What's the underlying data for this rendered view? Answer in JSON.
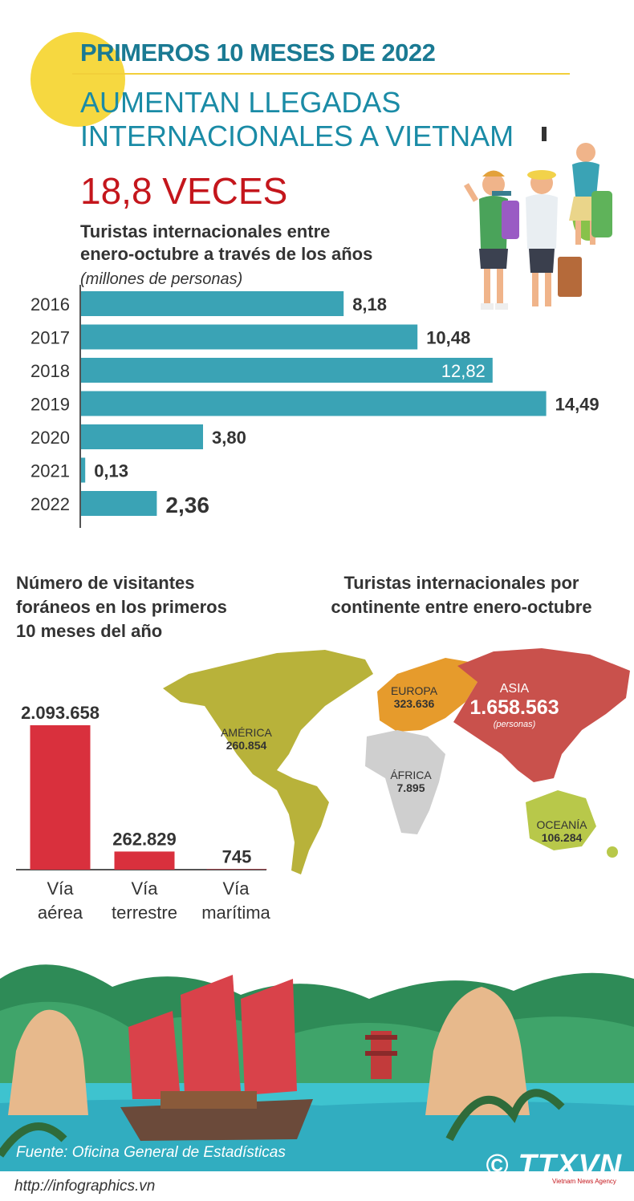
{
  "header": {
    "kicker": "PRIMEROS 10 MESES DE 2022",
    "headline_line1": "AUMENTAN LLEGADAS",
    "headline_line2": "INTERNACIONALES A VIETNAM",
    "big_stat": "18,8 VECES"
  },
  "chart_data": [
    {
      "type": "bar",
      "orientation": "horizontal",
      "title_line1": "Turistas internacionales entre",
      "title_line2": "enero-octubre a través de los años",
      "unit": "(millones de personas)",
      "categories": [
        "2016",
        "2017",
        "2018",
        "2019",
        "2020",
        "2021",
        "2022"
      ],
      "values": [
        8.18,
        10.48,
        12.82,
        14.49,
        3.8,
        0.13,
        2.36
      ],
      "value_labels": [
        "8,18",
        "10,48",
        "12,82",
        "14,49",
        "3,80",
        "0,13",
        "2,36"
      ],
      "bar_color": "#3aa3b5"
    },
    {
      "type": "bar",
      "orientation": "vertical",
      "title_line1": "Número de visitantes",
      "title_line2": "foráneos en los primeros",
      "title_line3": "10 meses del año",
      "categories": [
        [
          "Vía",
          "aérea"
        ],
        [
          "Vía",
          "terrestre"
        ],
        [
          "Vía",
          "marítima"
        ]
      ],
      "values": [
        2093658,
        262829,
        745
      ],
      "value_labels": [
        "2.093.658",
        "262.829",
        "745"
      ],
      "bar_color": "#d9303d"
    }
  ],
  "map": {
    "title_line1": "Turistas internacionales por",
    "title_line2": "continente entre enero-octubre",
    "continents": [
      {
        "name": "AMÉRICA",
        "value": "260.854",
        "color": "#b8b23a"
      },
      {
        "name": "EUROPA",
        "value": "323.636",
        "color": "#e69b2c"
      },
      {
        "name": "ASIA",
        "value": "1.658.563",
        "unit": "(personas)",
        "color": "#c9514c"
      },
      {
        "name": "ÁFRICA",
        "value": "7.895",
        "color": "#cfcfcf"
      },
      {
        "name": "OCEANÍA",
        "value": "106.284",
        "color": "#b8c84a"
      }
    ]
  },
  "footer": {
    "source": "Fuente: Oficina General de Estadísticas",
    "url": "http://infographics.vn",
    "logo": "© TTXVN",
    "logo_sub": "Vietnam News Agency"
  }
}
